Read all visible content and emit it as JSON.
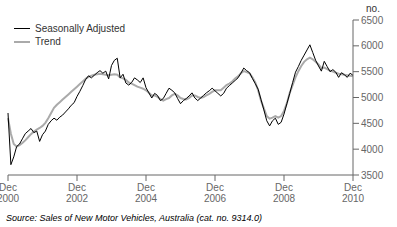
{
  "chart_data": {
    "type": "line",
    "source": "Source: Sales of New Motor Vehicles, Australia (cat. no. 9314.0)",
    "y_label": "no.",
    "categories": [
      "Dec\n2000",
      null,
      null,
      null,
      null,
      null,
      null,
      null,
      null,
      null,
      null,
      null,
      null,
      null,
      null,
      null,
      null,
      null,
      null,
      null,
      null,
      null,
      null,
      null,
      "Dec\n2002",
      null,
      null,
      null,
      null,
      null,
      null,
      null,
      null,
      null,
      null,
      null,
      null,
      null,
      null,
      null,
      null,
      null,
      null,
      null,
      null,
      null,
      null,
      null,
      "Dec\n2004",
      null,
      null,
      null,
      null,
      null,
      null,
      null,
      null,
      null,
      null,
      null,
      null,
      null,
      null,
      null,
      null,
      null,
      null,
      null,
      null,
      null,
      null,
      null,
      "Dec\n2006",
      null,
      null,
      null,
      null,
      null,
      null,
      null,
      null,
      null,
      null,
      null,
      null,
      null,
      null,
      null,
      null,
      null,
      null,
      null,
      null,
      null,
      null,
      null,
      "Dec\n2008",
      null,
      null,
      null,
      null,
      null,
      null,
      null,
      null,
      null,
      null,
      null,
      null,
      null,
      null,
      null,
      null,
      null,
      null,
      null,
      null,
      null,
      null,
      null,
      "Dec\n2010"
    ],
    "series": [
      {
        "name": "Seasonally Adjusted",
        "color": "#000000",
        "values": [
          4700,
          3700,
          3850,
          4050,
          4100,
          4200,
          4300,
          4350,
          4400,
          4320,
          4350,
          4150,
          4280,
          4350,
          4480,
          4550,
          4600,
          4560,
          4620,
          4660,
          4720,
          4780,
          4850,
          4900,
          5020,
          5120,
          5230,
          5350,
          5420,
          5380,
          5430,
          5480,
          5520,
          5470,
          5510,
          5360,
          5620,
          5720,
          5760,
          5380,
          5450,
          5280,
          5240,
          5290,
          5380,
          5340,
          5290,
          5380,
          5190,
          5090,
          4990,
          5080,
          5040,
          4940,
          4980,
          5080,
          5180,
          5140,
          5090,
          4980,
          4880,
          4940,
          4980,
          5030,
          5090,
          4990,
          4940,
          4990,
          5040,
          5090,
          5130,
          5180,
          5130,
          5080,
          5030,
          5080,
          5180,
          5230,
          5280,
          5330,
          5380,
          5470,
          5570,
          5520,
          5480,
          5370,
          5270,
          5160,
          4960,
          4760,
          4550,
          4450,
          4550,
          4600,
          4480,
          4520,
          4680,
          4880,
          5080,
          5290,
          5490,
          5600,
          5720,
          5820,
          5920,
          6020,
          5870,
          5720,
          5610,
          5510,
          5700,
          5600,
          5500,
          5540,
          5490,
          5390,
          5480,
          5440,
          5390,
          5470,
          5430
        ]
      },
      {
        "name": "Trend",
        "color": "#aaaaaa",
        "values": [
          4600,
          4300,
          4100,
          4050,
          4080,
          4120,
          4170,
          4230,
          4290,
          4340,
          4380,
          4410,
          4450,
          4510,
          4600,
          4700,
          4800,
          4860,
          4910,
          4960,
          5010,
          5060,
          5110,
          5160,
          5210,
          5260,
          5310,
          5360,
          5400,
          5420,
          5440,
          5450,
          5460,
          5450,
          5440,
          5430,
          5440,
          5450,
          5440,
          5390,
          5370,
          5340,
          5290,
          5270,
          5240,
          5210,
          5190,
          5170,
          5140,
          5090,
          5040,
          5040,
          5010,
          4970,
          4940,
          4970,
          4990,
          5040,
          5070,
          5040,
          4990,
          4970,
          4960,
          4990,
          5040,
          5040,
          5010,
          4990,
          5010,
          5040,
          5070,
          5110,
          5140,
          5140,
          5140,
          5190,
          5240,
          5270,
          5310,
          5370,
          5410,
          5470,
          5510,
          5490,
          5470,
          5390,
          5290,
          5140,
          4940,
          4790,
          4640,
          4590,
          4610,
          4640,
          4610,
          4640,
          4740,
          4890,
          5090,
          5240,
          5390,
          5510,
          5610,
          5690,
          5740,
          5770,
          5740,
          5690,
          5640,
          5570,
          5580,
          5550,
          5520,
          5500,
          5480,
          5460,
          5450,
          5440,
          5430,
          5420,
          5410
        ]
      }
    ],
    "ylim": [
      3500,
      6500
    ],
    "yticks": [
      3500,
      4000,
      4500,
      5000,
      5500,
      6000,
      6500
    ],
    "grid": false,
    "legend": "upper left"
  }
}
